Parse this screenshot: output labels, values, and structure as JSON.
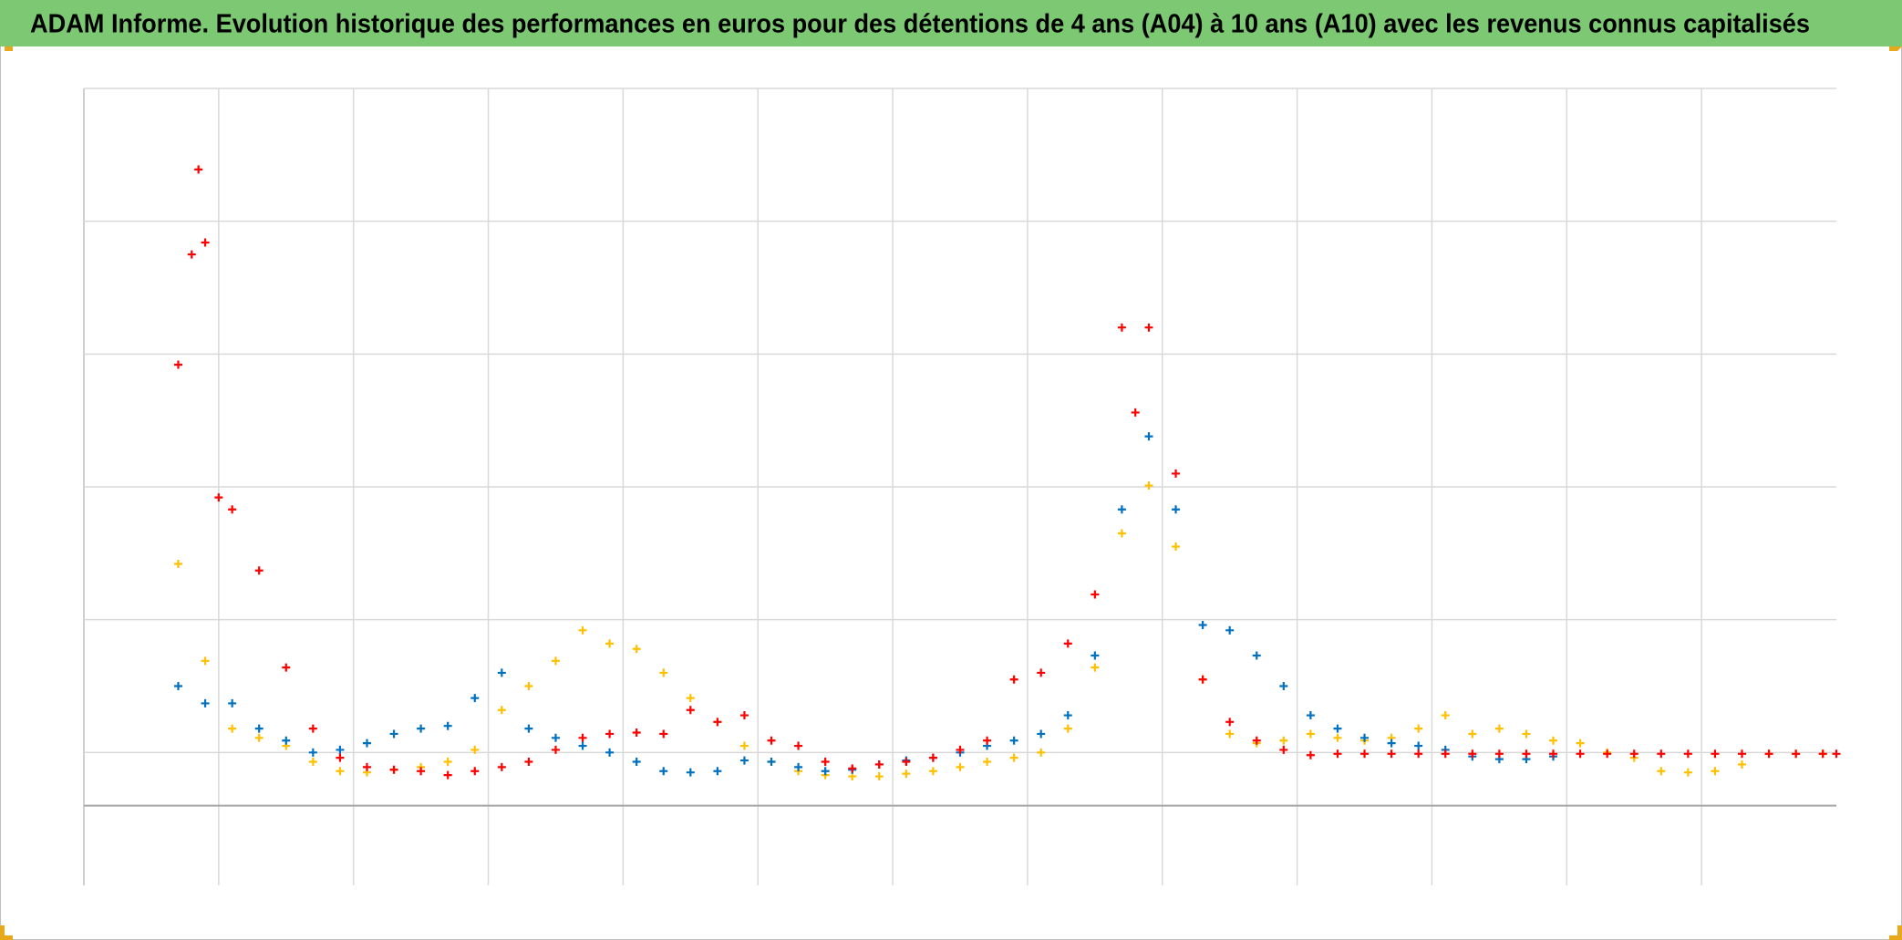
{
  "chart_data": {
    "type": "scatter",
    "title": "ADAM Informe. Evolution historique des performances en euros pour des détentions de 4 ans (A04) à 10 ans (A10) avec les revenus connus capitalisés",
    "xlim": [
      0,
      13
    ],
    "ylim": [
      -0.6,
      5.4
    ],
    "xgrid": [
      0,
      1,
      2,
      3,
      4,
      5,
      6,
      7,
      8,
      9,
      10,
      11,
      12
    ],
    "ygrid": [
      0.4,
      1.4,
      2.4,
      3.4,
      4.4,
      5.4
    ],
    "baseline": 0,
    "grid": true,
    "series": [
      {
        "color": "#ffc000",
        "x": [
          0.7,
          0.9,
          1.1,
          1.3,
          1.5,
          1.7,
          1.9,
          2.1,
          2.3,
          2.5,
          2.7,
          2.9,
          3.1,
          3.3,
          3.5,
          3.7,
          3.9,
          4.1,
          4.3,
          4.5,
          4.7,
          4.9,
          5.1,
          5.3,
          5.5,
          5.7,
          5.9,
          6.1,
          6.3,
          6.5,
          6.7,
          6.9,
          7.1,
          7.3,
          7.5,
          7.7,
          7.9,
          8.1,
          8.3,
          8.5,
          8.7,
          8.9,
          9.1,
          9.3,
          9.5,
          9.7,
          9.9,
          10.1,
          10.3,
          10.5,
          10.7,
          10.9,
          11.1,
          11.3,
          11.5,
          11.7,
          11.9,
          12.1,
          12.3,
          12.5,
          12.7,
          12.9
        ],
        "values": [
          1.82,
          1.09,
          0.58,
          0.51,
          0.45,
          0.33,
          0.26,
          0.25,
          0.27,
          0.29,
          0.33,
          0.42,
          0.72,
          0.9,
          1.09,
          1.32,
          1.22,
          1.18,
          1.0,
          0.81,
          0.63,
          0.45,
          0.33,
          0.26,
          0.23,
          0.22,
          0.22,
          0.24,
          0.26,
          0.29,
          0.33,
          0.36,
          0.4,
          0.58,
          1.04,
          2.05,
          2.41,
          1.95,
          0.95,
          0.54,
          0.47,
          0.49,
          0.54,
          0.51,
          0.49,
          0.51,
          0.58,
          0.68,
          0.54,
          0.58,
          0.54,
          0.49,
          0.47,
          0.4,
          0.36,
          0.26,
          0.25,
          0.26,
          0.31,
          0.39,
          0.39,
          0.39
        ]
      },
      {
        "color": "#0070c0",
        "x": [
          0.7,
          0.9,
          1.1,
          1.3,
          1.5,
          1.7,
          1.9,
          2.1,
          2.3,
          2.5,
          2.7,
          2.9,
          3.1,
          3.3,
          3.5,
          3.7,
          3.9,
          4.1,
          4.3,
          4.5,
          4.7,
          4.9,
          5.1,
          5.3,
          5.5,
          5.7,
          5.9,
          6.1,
          6.3,
          6.5,
          6.7,
          6.9,
          7.1,
          7.3,
          7.5,
          7.7,
          7.9,
          8.1,
          8.3,
          8.5,
          8.7,
          8.9,
          9.1,
          9.3,
          9.5,
          9.7,
          9.9,
          10.1,
          10.3,
          10.5,
          10.7,
          10.9
        ],
        "values": [
          0.9,
          0.77,
          0.77,
          0.58,
          0.49,
          0.4,
          0.42,
          0.47,
          0.54,
          0.58,
          0.6,
          0.81,
          1.0,
          0.58,
          0.51,
          0.45,
          0.4,
          0.33,
          0.26,
          0.25,
          0.26,
          0.34,
          0.33,
          0.29,
          0.26,
          0.27,
          0.31,
          0.34,
          0.36,
          0.4,
          0.45,
          0.49,
          0.54,
          0.68,
          1.13,
          2.23,
          2.78,
          2.23,
          1.36,
          1.32,
          1.13,
          0.9,
          0.68,
          0.58,
          0.51,
          0.47,
          0.45,
          0.42,
          0.37,
          0.35,
          0.35,
          0.37
        ]
      },
      {
        "color": "#ff0000",
        "x": [
          0.7,
          0.8,
          0.85,
          0.9,
          1.0,
          1.1,
          1.3,
          1.5,
          1.7,
          1.9,
          2.1,
          2.3,
          2.5,
          2.7,
          2.9,
          3.1,
          3.3,
          3.5,
          3.7,
          3.9,
          4.1,
          4.3,
          4.5,
          4.7,
          4.9,
          5.1,
          5.3,
          5.5,
          5.7,
          5.9,
          6.1,
          6.3,
          6.5,
          6.7,
          6.9,
          7.1,
          7.3,
          7.5,
          7.7,
          7.8,
          7.9,
          8.1,
          8.3,
          8.5,
          8.7,
          8.9,
          9.1,
          9.3,
          9.5,
          9.7,
          9.9,
          10.1,
          10.3,
          10.5,
          10.7,
          10.9,
          11.1,
          11.3,
          11.5,
          11.7,
          11.9,
          12.1,
          12.3,
          12.5,
          12.7,
          12.9,
          13
        ],
        "values": [
          3.32,
          4.15,
          4.79,
          4.24,
          2.32,
          2.23,
          1.77,
          1.04,
          0.58,
          0.36,
          0.29,
          0.27,
          0.26,
          0.23,
          0.26,
          0.29,
          0.33,
          0.42,
          0.51,
          0.54,
          0.55,
          0.54,
          0.72,
          0.63,
          0.68,
          0.49,
          0.45,
          0.33,
          0.28,
          0.31,
          0.33,
          0.36,
          0.42,
          0.49,
          0.95,
          1.0,
          1.22,
          1.59,
          3.6,
          2.96,
          3.6,
          2.5,
          0.95,
          0.63,
          0.49,
          0.42,
          0.38,
          0.39,
          0.39,
          0.39,
          0.39,
          0.39,
          0.39,
          0.39,
          0.39,
          0.39,
          0.39,
          0.39,
          0.39,
          0.39,
          0.39,
          0.39,
          0.39,
          0.39,
          0.39,
          0.39,
          0.39
        ]
      }
    ]
  }
}
